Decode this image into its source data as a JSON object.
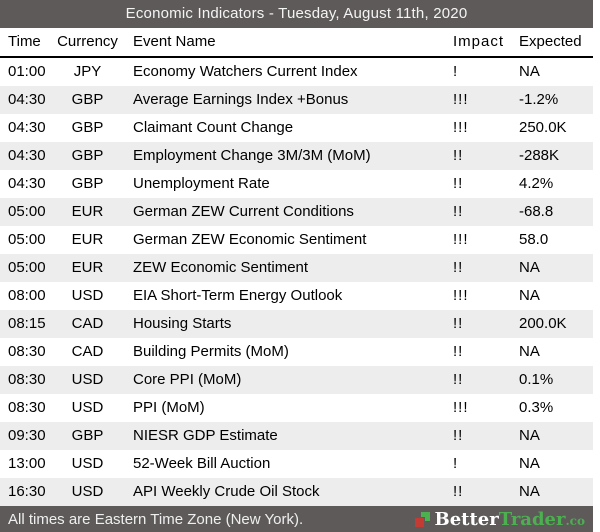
{
  "title": "Economic Indicators - Tuesday, August 11th, 2020",
  "table": {
    "columns": [
      "Time",
      "Currency",
      "Event Name",
      "Impact",
      "Expected"
    ],
    "rows": [
      {
        "time": "01:00",
        "currency": "JPY",
        "event": "Economy Watchers Current Index",
        "impact": "!",
        "expected": "NA"
      },
      {
        "time": "04:30",
        "currency": "GBP",
        "event": "Average Earnings Index +Bonus",
        "impact": "!!!",
        "expected": "-1.2%"
      },
      {
        "time": "04:30",
        "currency": "GBP",
        "event": "Claimant Count Change",
        "impact": "!!!",
        "expected": "250.0K"
      },
      {
        "time": "04:30",
        "currency": "GBP",
        "event": "Employment Change 3M/3M (MoM)",
        "impact": "!!",
        "expected": "-288K"
      },
      {
        "time": "04:30",
        "currency": "GBP",
        "event": "Unemployment Rate",
        "impact": "!!",
        "expected": "4.2%"
      },
      {
        "time": "05:00",
        "currency": "EUR",
        "event": "German ZEW Current Conditions",
        "impact": "!!",
        "expected": "-68.8"
      },
      {
        "time": "05:00",
        "currency": "EUR",
        "event": "German ZEW Economic Sentiment",
        "impact": "!!!",
        "expected": "58.0"
      },
      {
        "time": "05:00",
        "currency": "EUR",
        "event": "ZEW Economic Sentiment",
        "impact": "!!",
        "expected": "NA"
      },
      {
        "time": "08:00",
        "currency": "USD",
        "event": "EIA Short-Term Energy Outlook",
        "impact": "!!!",
        "expected": "NA"
      },
      {
        "time": "08:15",
        "currency": "CAD",
        "event": "Housing Starts",
        "impact": "!!",
        "expected": "200.0K"
      },
      {
        "time": "08:30",
        "currency": "CAD",
        "event": "Building Permits (MoM)",
        "impact": "!!",
        "expected": "NA"
      },
      {
        "time": "08:30",
        "currency": "USD",
        "event": "Core PPI (MoM)",
        "impact": "!!",
        "expected": "0.1%"
      },
      {
        "time": "08:30",
        "currency": "USD",
        "event": "PPI (MoM)",
        "impact": "!!!",
        "expected": "0.3%"
      },
      {
        "time": "09:30",
        "currency": "GBP",
        "event": "NIESR GDP Estimate",
        "impact": "!!",
        "expected": "NA"
      },
      {
        "time": "13:00",
        "currency": "USD",
        "event": "52-Week Bill Auction",
        "impact": "!",
        "expected": "NA"
      },
      {
        "time": "16:30",
        "currency": "USD",
        "event": "API Weekly Crude Oil Stock",
        "impact": "!!",
        "expected": "NA"
      }
    ]
  },
  "footer": {
    "note": "All times are Eastern Time Zone (New York).",
    "brand": {
      "part1": "Better",
      "part2": "Trader",
      "suffix": ".co",
      "icon": "bettertrader-squares-icon"
    }
  },
  "colors": {
    "bar_background": "#5e5a5a",
    "stripe_background": "#ededed",
    "brand_green": "#4caf50",
    "brand_red": "#c43b33",
    "text": "#000000",
    "bar_text": "#f4f4f4"
  }
}
